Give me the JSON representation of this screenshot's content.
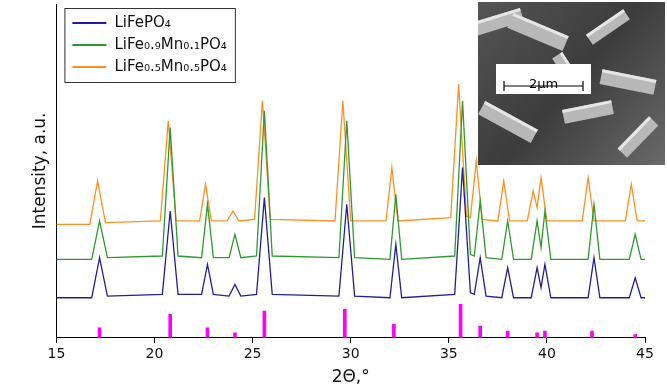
{
  "chart_data": {
    "type": "line",
    "x_label": "2Θ,°",
    "y_label": "Intensity, a.u.",
    "xlim": [
      15,
      45
    ],
    "xticks": [
      15,
      20,
      25,
      30,
      35,
      40,
      45
    ],
    "ylim": [
      0,
      100
    ],
    "tick_labels": "x",
    "grid": false,
    "legend": "upper left",
    "annotations": [
      {
        "text": "2μm"
      }
    ],
    "series": [
      {
        "name": "LiFePO₄",
        "color": "#1f1f9e",
        "x": [
          15,
          16.8,
          17.2,
          17.6,
          20.4,
          20.8,
          21.2,
          22.4,
          22.7,
          23.0,
          23.8,
          24.1,
          24.4,
          25.2,
          25.6,
          26.0,
          29.4,
          29.8,
          30.2,
          32.0,
          32.3,
          32.6,
          35.3,
          35.7,
          36.1,
          36.3,
          36.6,
          36.9,
          37.7,
          38.0,
          38.3,
          39.2,
          39.5,
          39.7,
          39.9,
          40.2,
          42.1,
          42.4,
          42.7,
          44.2,
          44.5,
          44.8,
          45
        ],
        "values": [
          12,
          12,
          24,
          12.5,
          13,
          38,
          13,
          13,
          22,
          13,
          12.5,
          16,
          12.5,
          13,
          42,
          13,
          12.5,
          40,
          12.5,
          12,
          28,
          12,
          13,
          51,
          13.5,
          13,
          24,
          12.5,
          12,
          21,
          12,
          12,
          21,
          15,
          22,
          12,
          12,
          24,
          12,
          12,
          18,
          12,
          12
        ]
      },
      {
        "name": "LiFe₀.₉Mn₀.₁PO₄",
        "color": "#2e9a2e",
        "x": [
          15,
          16.8,
          17.2,
          17.6,
          20.4,
          20.8,
          21.2,
          22.4,
          22.7,
          23.0,
          23.8,
          24.1,
          24.4,
          25.2,
          25.6,
          26.0,
          29.4,
          29.8,
          30.2,
          32.0,
          32.3,
          32.6,
          35.3,
          35.7,
          36.1,
          36.3,
          36.6,
          36.9,
          37.7,
          38.0,
          38.3,
          39.2,
          39.5,
          39.7,
          39.9,
          40.2,
          42.1,
          42.4,
          42.7,
          44.2,
          44.5,
          44.8,
          45
        ],
        "values": [
          23.5,
          23.5,
          35,
          24,
          24.5,
          63,
          24.5,
          24,
          40,
          24,
          24,
          31,
          24,
          24.5,
          68,
          24.5,
          24,
          65,
          24,
          23.5,
          43,
          23.5,
          24.5,
          71,
          25,
          24.5,
          41,
          24,
          23.5,
          35,
          23.5,
          23.5,
          35,
          27,
          38,
          23.5,
          23.5,
          40,
          23.5,
          23.5,
          31,
          23.5,
          23.5
        ]
      },
      {
        "name": "LiFe₀.₅Mn₀.₅PO₄",
        "color": "#ff9020",
        "x": [
          15,
          16.7,
          17.1,
          17.5,
          20.3,
          20.7,
          21.1,
          22.3,
          22.6,
          22.9,
          23.7,
          24.0,
          24.3,
          25.1,
          25.5,
          25.9,
          29.2,
          29.6,
          30.0,
          31.8,
          32.1,
          32.4,
          35.1,
          35.5,
          35.9,
          36.1,
          36.4,
          36.7,
          37.5,
          37.8,
          38.1,
          39.0,
          39.3,
          39.5,
          39.7,
          40.0,
          41.8,
          42.1,
          42.4,
          44.0,
          44.3,
          44.6,
          45
        ],
        "values": [
          34,
          34,
          47,
          34.5,
          35,
          65,
          35,
          35,
          46,
          35,
          35,
          38,
          35,
          35.5,
          71,
          35.5,
          35,
          71,
          35,
          35,
          51,
          35,
          36,
          76,
          36.5,
          36,
          53,
          35.5,
          35,
          47,
          35,
          35,
          44,
          39,
          48,
          35,
          35,
          48,
          35,
          35,
          46,
          35,
          35
        ]
      },
      {
        "type": "bar",
        "color": "#ff00ff",
        "x": [
          17.2,
          20.8,
          22.7,
          24.1,
          25.6,
          29.7,
          32.2,
          35.6,
          36.6,
          38.0,
          39.5,
          39.9,
          42.3,
          44.5
        ],
        "values": [
          3,
          7,
          3,
          1.5,
          8,
          8.5,
          4,
          10,
          3.5,
          2,
          1.5,
          2,
          2,
          1
        ]
      }
    ]
  }
}
